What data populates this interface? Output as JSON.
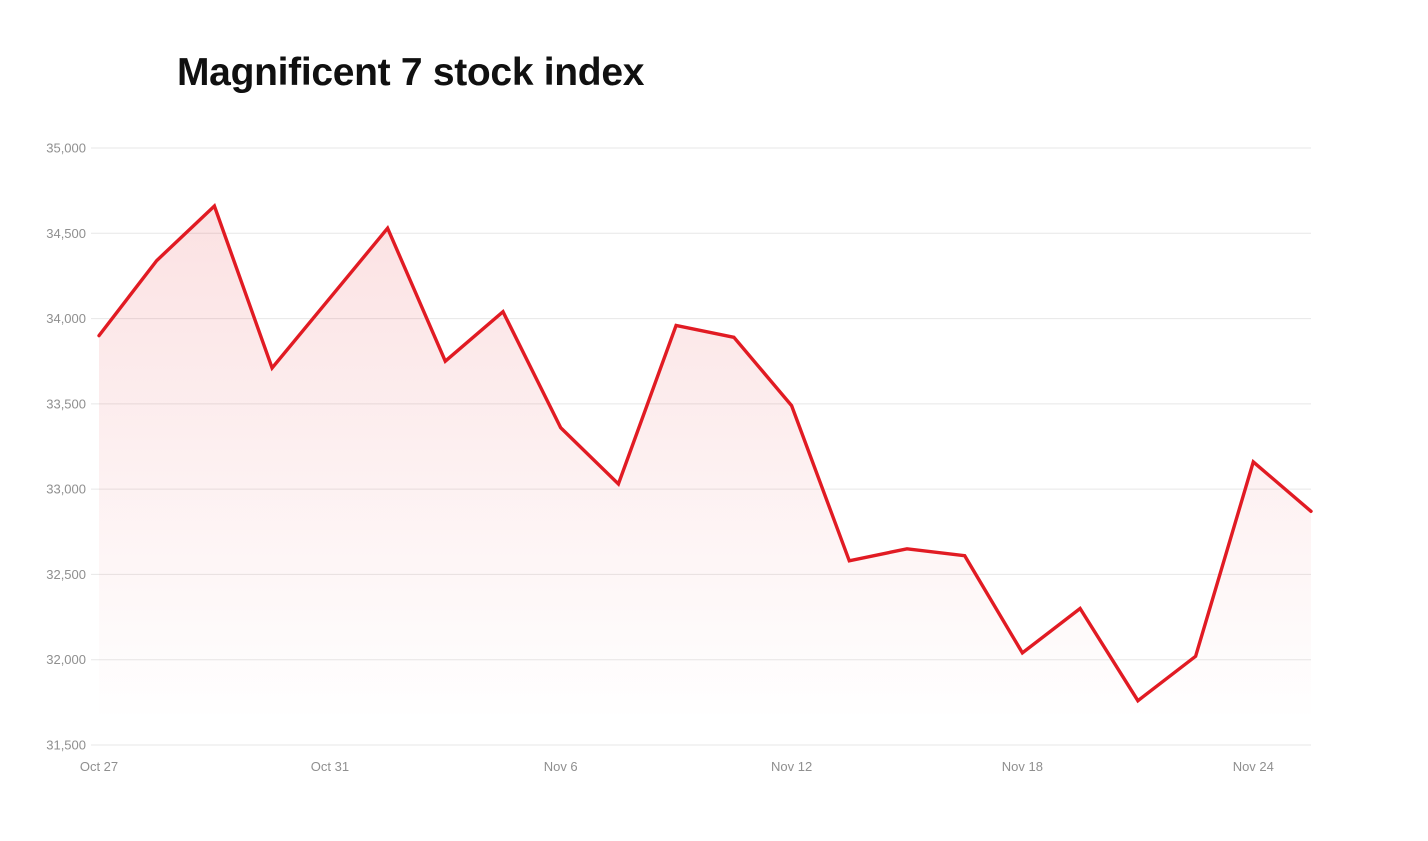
{
  "chart_data": {
    "type": "area",
    "title": "Magnificent 7 stock index",
    "x": [
      "Oct 27",
      "Oct 28",
      "Oct 29",
      "Oct 30",
      "Oct 31",
      "Nov 3",
      "Nov 4",
      "Nov 5",
      "Nov 6",
      "Nov 7",
      "Nov 10",
      "Nov 11",
      "Nov 12",
      "Nov 13",
      "Nov 14",
      "Nov 17",
      "Nov 18",
      "Nov 19",
      "Nov 20",
      "Nov 21",
      "Nov 24",
      "Nov 25"
    ],
    "series": [
      {
        "name": "Magnificent 7 stock index",
        "values": [
          33900,
          34340,
          34660,
          33710,
          34120,
          34530,
          33750,
          34040,
          33360,
          33030,
          33960,
          33890,
          33490,
          32580,
          32650,
          32610,
          32040,
          32300,
          31760,
          32020,
          33160,
          32870
        ]
      }
    ],
    "ylim": [
      31500,
      35000
    ],
    "y_ticks": [
      35000,
      34500,
      34000,
      33500,
      33000,
      32500,
      32000,
      31500
    ],
    "y_tick_labels": [
      "35,000",
      "34,500",
      "34,000",
      "33,500",
      "33,000",
      "32,500",
      "32,000",
      "31,500"
    ],
    "x_tick_indices": [
      0,
      4,
      8,
      12,
      16,
      20
    ],
    "x_tick_labels": [
      "Oct 27",
      "Oct 31",
      "Nov 6",
      "Nov 12",
      "Nov 18",
      "Nov 24"
    ],
    "grid": "horizontal",
    "legend": "none",
    "style": {
      "line_color": "#E11B23",
      "area_top_opacity": 0.13,
      "area_bottom_opacity": 0,
      "grid_color": "#E7E7E7",
      "tick_label_color": "#8F8F8F",
      "title_color": "#101010",
      "background": "#FFFFFF"
    }
  }
}
